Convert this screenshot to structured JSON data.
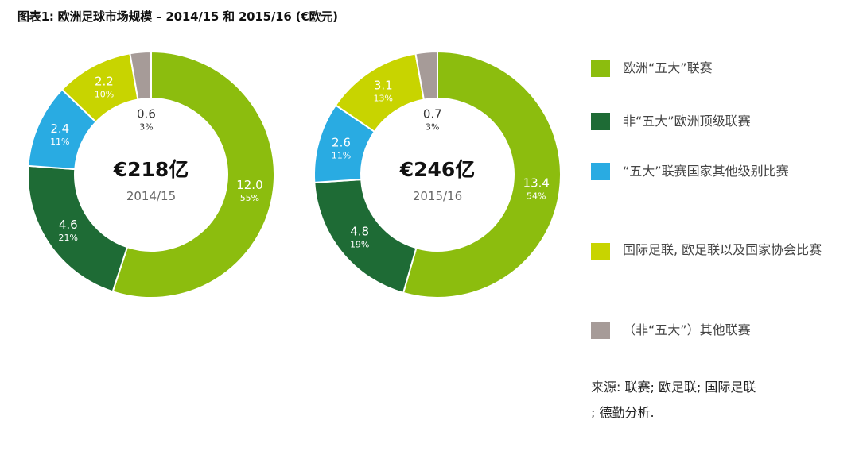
{
  "title": "图表1: 欧洲足球市场规模 – 2014/15 和 2015/16 (€欧元)",
  "colors": {
    "big5": "#8cbd0e",
    "non_big5": "#1e6b35",
    "other_big5_countries": "#29abe2",
    "intl": "#c8d400",
    "other": "#a69b98"
  },
  "legend": [
    {
      "label": "欧洲“五大”联赛",
      "color": "#8cbd0e"
    },
    {
      "label": "非“五大”欧洲顶级联赛",
      "color": "#1e6b35"
    },
    {
      "label": "“五大”联赛国家其他级别比赛",
      "color": "#29abe2"
    },
    {
      "label": "国际足联, 欧足联以及国家协会比赛",
      "color": "#c8d400"
    },
    {
      "label": "（非“五大”）其他联赛",
      "color": "#a69b98"
    }
  ],
  "source": {
    "line1": "来源: 联赛; 欧足联; 国际足联",
    "line2": "; 德勤分析."
  },
  "chart_data": [
    {
      "type": "pie",
      "donut": true,
      "center_total": "€218亿",
      "center_period": "2014/15",
      "series": [
        {
          "category": "欧洲“五大”联赛",
          "value": 12.0,
          "percent_label": "55%",
          "color": "#8cbd0e"
        },
        {
          "category": "非“五大”欧洲顶级联赛",
          "value": 4.6,
          "percent_label": "21%",
          "color": "#1e6b35"
        },
        {
          "category": "“五大”联赛国家其他级别比赛",
          "value": 2.4,
          "percent_label": "11%",
          "color": "#29abe2"
        },
        {
          "category": "国际足联, 欧足联以及国家协会比赛",
          "value": 2.2,
          "percent_label": "10%",
          "color": "#c8d400"
        },
        {
          "category": "（非“五大”）其他联赛",
          "value": 0.6,
          "percent_label": "3%",
          "color": "#a69b98"
        }
      ]
    },
    {
      "type": "pie",
      "donut": true,
      "center_total": "€246亿",
      "center_period": "2015/16",
      "series": [
        {
          "category": "欧洲“五大”联赛",
          "value": 13.4,
          "percent_label": "54%",
          "color": "#8cbd0e"
        },
        {
          "category": "非“五大”欧洲顶级联赛",
          "value": 4.8,
          "percent_label": "19%",
          "color": "#1e6b35"
        },
        {
          "category": "“五大”联赛国家其他级别比赛",
          "value": 2.6,
          "percent_label": "11%",
          "color": "#29abe2"
        },
        {
          "category": "国际足联, 欧足联以及国家协会比赛",
          "value": 3.1,
          "percent_label": "13%",
          "color": "#c8d400"
        },
        {
          "category": "（非“五大”）其他联赛",
          "value": 0.7,
          "percent_label": "3%",
          "color": "#a69b98"
        }
      ]
    }
  ]
}
